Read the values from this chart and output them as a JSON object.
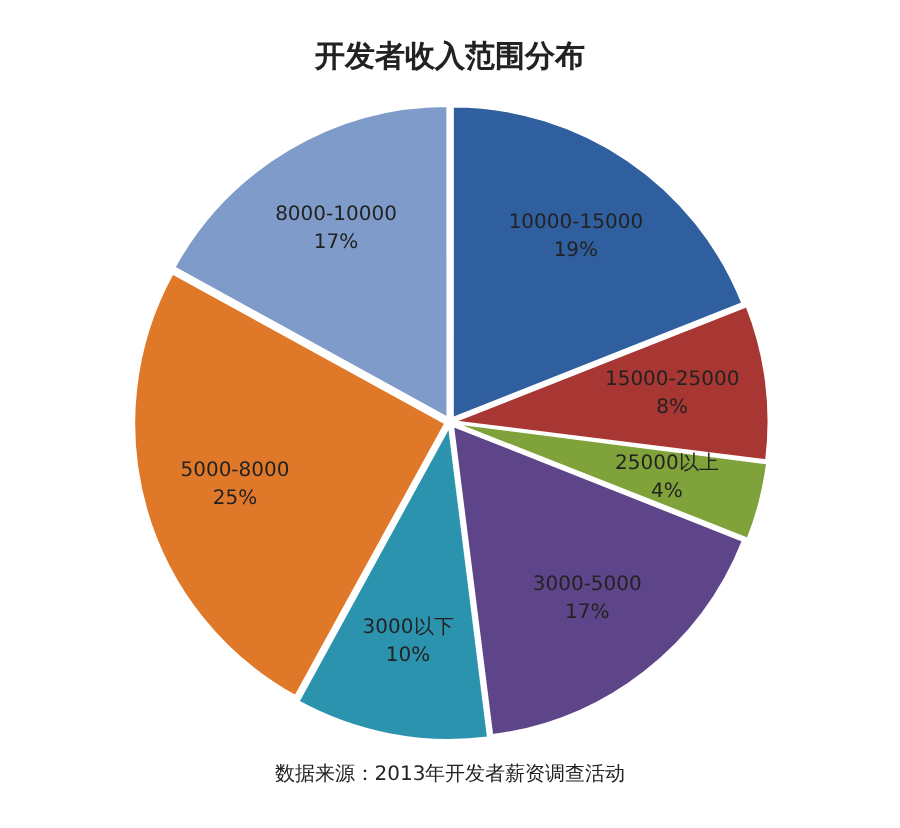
{
  "chart_data": {
    "type": "pie",
    "title": "开发者收入范围分布",
    "categories": [
      "10000-15000",
      "15000-25000",
      "25000以上",
      "3000-5000",
      "3000以下",
      "5000-8000",
      "8000-10000"
    ],
    "values": [
      19,
      8,
      4,
      17,
      10,
      25,
      17
    ],
    "value_labels": [
      "19%",
      "8%",
      "4%",
      "17%",
      "10%",
      "25%",
      "17%"
    ],
    "colors": [
      "#2f5f9e",
      "#a83632",
      "#7fa33a",
      "#5e4488",
      "#2b93ae",
      "#e0782a",
      "#7f9bc9"
    ],
    "legend": false,
    "annotations": [
      "数据来源：2013年开发者薪资调查活动"
    ]
  }
}
